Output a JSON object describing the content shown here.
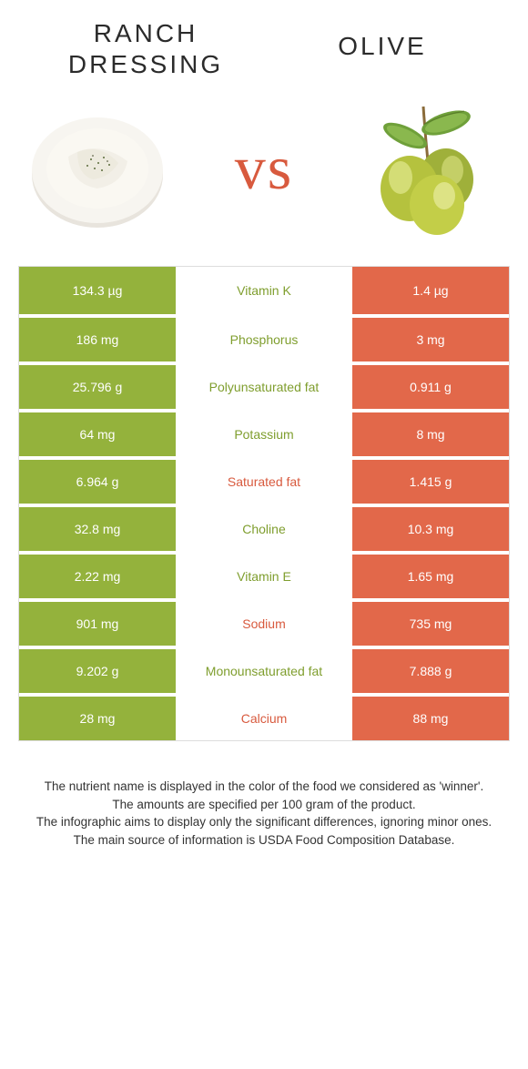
{
  "colors": {
    "left": "#94b23c",
    "right": "#e2684a",
    "nutrient_left_text": "#7f9e2e",
    "nutrient_right_text": "#d85a3e",
    "vs_text": "#d85a3e",
    "title_text": "#2b2b2b",
    "border": "#dddddd",
    "row_gap": "#ffffff"
  },
  "header": {
    "left_line1": "Ranch",
    "left_line2": "dressing",
    "right": "Olive",
    "title_fontsize": 28,
    "letter_spacing": 3
  },
  "vs": "vs",
  "rows": [
    {
      "left": "134.3 µg",
      "name": "Vitamin K",
      "right": "1.4 µg",
      "winner": "left"
    },
    {
      "left": "186 mg",
      "name": "Phosphorus",
      "right": "3 mg",
      "winner": "left"
    },
    {
      "left": "25.796 g",
      "name": "Polyunsaturated fat",
      "right": "0.911 g",
      "winner": "left"
    },
    {
      "left": "64 mg",
      "name": "Potassium",
      "right": "8 mg",
      "winner": "left"
    },
    {
      "left": "6.964 g",
      "name": "Saturated fat",
      "right": "1.415 g",
      "winner": "right"
    },
    {
      "left": "32.8 mg",
      "name": "Choline",
      "right": "10.3 mg",
      "winner": "left"
    },
    {
      "left": "2.22 mg",
      "name": "Vitamin E",
      "right": "1.65 mg",
      "winner": "left"
    },
    {
      "left": "901 mg",
      "name": "Sodium",
      "right": "735 mg",
      "winner": "right"
    },
    {
      "left": "9.202 g",
      "name": "Monounsaturated fat",
      "right": "7.888 g",
      "winner": "left"
    },
    {
      "left": "28 mg",
      "name": "Calcium",
      "right": "88 mg",
      "winner": "right"
    }
  ],
  "footer": {
    "l1": "The nutrient name is displayed in the color of the food we considered as 'winner'.",
    "l2": "The amounts are specified per 100 gram of the product.",
    "l3": "The infographic aims to display only the significant differences, ignoring minor ones.",
    "l4": "The main source of information is USDA Food Composition Database."
  }
}
